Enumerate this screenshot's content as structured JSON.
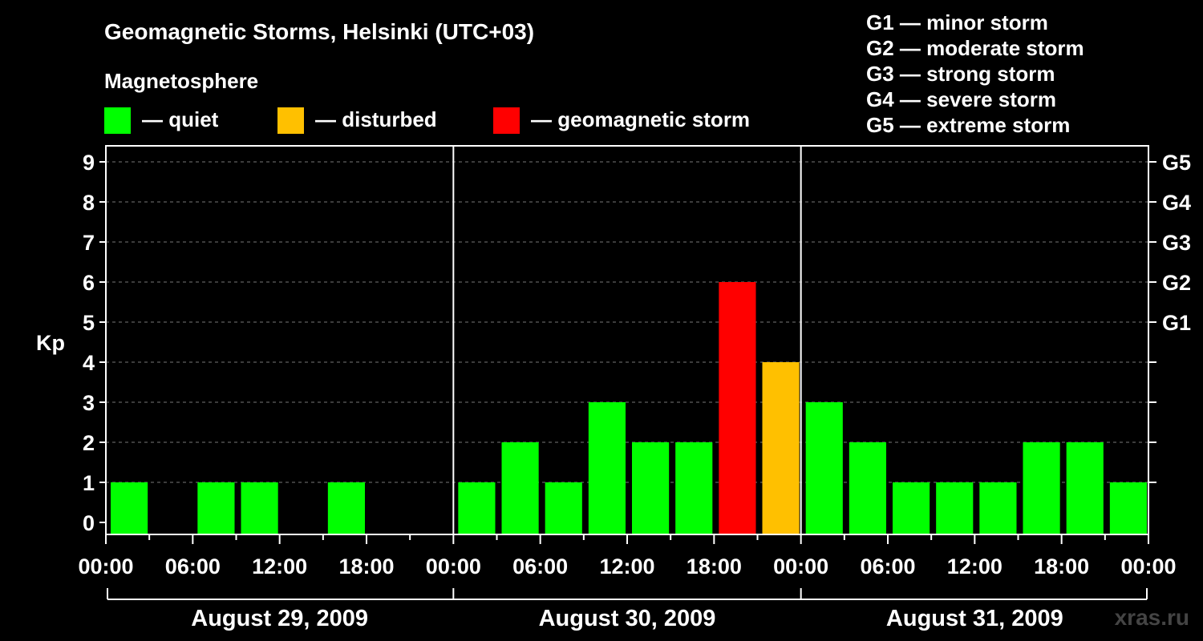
{
  "title": "Geomagnetic Storms, Helsinki (UTC+03)",
  "subtitle": "Magnetosphere",
  "status_legend": [
    {
      "label": "— quiet",
      "color": "#00ff00"
    },
    {
      "label": "— disturbed",
      "color": "#ffc000"
    },
    {
      "label": "— geomagnetic storm",
      "color": "#ff0000"
    }
  ],
  "g_scale_legend": [
    "G1 — minor storm",
    "G2 — moderate storm",
    "G3 — strong storm",
    "G4 — severe storm",
    "G5 — extreme storm"
  ],
  "credit": "xras.ru",
  "chart_data": {
    "type": "bar",
    "ylabel": "Kp",
    "ylim": [
      0,
      9
    ],
    "y_ticks": [
      "0",
      "1",
      "2",
      "3",
      "4",
      "5",
      "6",
      "7",
      "8",
      "9"
    ],
    "right_axis_labels": [
      {
        "kp": 5,
        "label": "G1"
      },
      {
        "kp": 6,
        "label": "G2"
      },
      {
        "kp": 7,
        "label": "G3"
      },
      {
        "kp": 8,
        "label": "G4"
      },
      {
        "kp": 9,
        "label": "G5"
      }
    ],
    "x_tick_labels": [
      "00:00",
      "06:00",
      "12:00",
      "18:00",
      "00:00",
      "06:00",
      "12:00",
      "18:00",
      "00:00",
      "06:00",
      "12:00",
      "18:00",
      "00:00"
    ],
    "days": [
      "August 29, 2009",
      "August 30, 2009",
      "August 31, 2009"
    ],
    "interval_hours": 3,
    "series": [
      {
        "values": [
          1,
          null,
          1,
          1,
          null,
          1,
          null,
          null,
          1,
          2,
          1,
          3,
          2,
          2,
          6,
          4,
          3,
          2,
          1,
          1,
          1,
          2,
          2,
          1
        ]
      }
    ],
    "bar_colors": {
      "quiet": "#00ff00",
      "disturbed": "#ffc000",
      "storm": "#ff0000"
    },
    "grid": "dashed horizontal at each Kp level"
  }
}
